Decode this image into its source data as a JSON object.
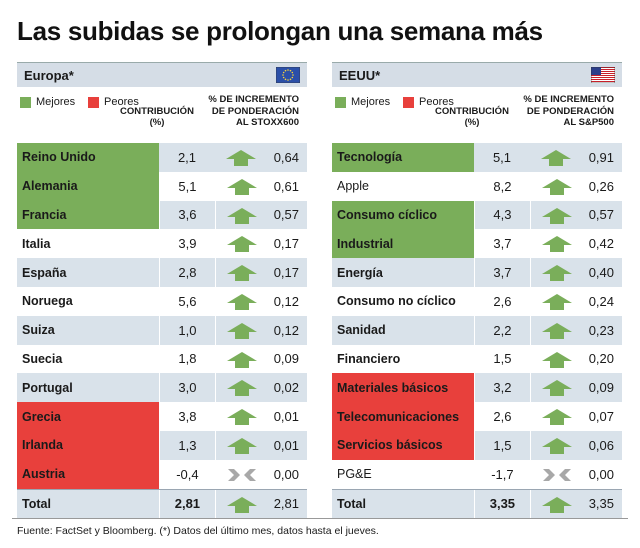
{
  "title": "Las subidas se prolongan una semana más",
  "legend": {
    "better": "Mejores",
    "worse": "Peores",
    "better_color": "#7aae5a",
    "worse_color": "#e8403c"
  },
  "header_contrib": [
    "CONTRIBUCIÓN",
    "(%)"
  ],
  "footer": "Fuente: FactSet y Bloomberg. (*) Datos del último mes, datos hasta el jueves.",
  "chart_data": [
    {
      "type": "table",
      "title": "Europa*",
      "flag": "eu-flag",
      "columns": [
        "",
        "CONTRIBUCIÓN (%)",
        "% DE INCREMENTO DE PONDERACIÓN AL STOXX600"
      ],
      "pct_header": [
        "% DE INCREMENTO",
        "DE PONDERACIÓN",
        "AL STOXX600"
      ],
      "rows": [
        {
          "name": "Reino Unido",
          "contrib": "2,1",
          "direction": "up",
          "weight": "0,64",
          "status": "better"
        },
        {
          "name": "Alemania",
          "contrib": "5,1",
          "direction": "up",
          "weight": "0,61",
          "status": "better"
        },
        {
          "name": "Francia",
          "contrib": "3,6",
          "direction": "up",
          "weight": "0,57",
          "status": "better"
        },
        {
          "name": "Italia",
          "contrib": "3,9",
          "direction": "up",
          "weight": "0,17",
          "status": "neutral"
        },
        {
          "name": "España",
          "contrib": "2,8",
          "direction": "up",
          "weight": "0,17",
          "status": "neutral"
        },
        {
          "name": "Noruega",
          "contrib": "5,6",
          "direction": "up",
          "weight": "0,12",
          "status": "neutral"
        },
        {
          "name": "Suiza",
          "contrib": "1,0",
          "direction": "up",
          "weight": "0,12",
          "status": "neutral"
        },
        {
          "name": "Suecia",
          "contrib": "1,8",
          "direction": "up",
          "weight": "0,09",
          "status": "neutral"
        },
        {
          "name": "Portugal",
          "contrib": "3,0",
          "direction": "up",
          "weight": "0,02",
          "status": "neutral"
        },
        {
          "name": "Grecia",
          "contrib": "3,8",
          "direction": "up",
          "weight": "0,01",
          "status": "worse"
        },
        {
          "name": "Irlanda",
          "contrib": "1,3",
          "direction": "up",
          "weight": "0,01",
          "status": "worse"
        },
        {
          "name": "Austria",
          "contrib": "-0,4",
          "direction": "flat",
          "weight": "0,00",
          "status": "worse"
        }
      ],
      "total": {
        "name": "Total",
        "contrib": "2,81",
        "direction": "up",
        "weight": "2,81"
      }
    },
    {
      "type": "table",
      "title": "EEUU*",
      "flag": "us-flag",
      "columns": [
        "",
        "CONTRIBUCIÓN (%)",
        "% DE INCREMENTO DE PONDERACIÓN AL S&P500"
      ],
      "pct_header": [
        "% DE INCREMENTO",
        "DE PONDERACIÓN",
        "AL S&P500"
      ],
      "rows": [
        {
          "name": "Tecnología",
          "contrib": "5,1",
          "direction": "up",
          "weight": "0,91",
          "status": "better",
          "bold": true
        },
        {
          "name": "Apple",
          "contrib": "8,2",
          "direction": "up",
          "weight": "0,26",
          "status": "neutral",
          "bold": false
        },
        {
          "name": "Consumo cíclico",
          "contrib": "4,3",
          "direction": "up",
          "weight": "0,57",
          "status": "better",
          "bold": true
        },
        {
          "name": "Industrial",
          "contrib": "3,7",
          "direction": "up",
          "weight": "0,42",
          "status": "better",
          "bold": true
        },
        {
          "name": "Energía",
          "contrib": "3,7",
          "direction": "up",
          "weight": "0,40",
          "status": "neutral",
          "bold": true
        },
        {
          "name": "Consumo no cíclico",
          "contrib": "2,6",
          "direction": "up",
          "weight": "0,24",
          "status": "neutral",
          "bold": true
        },
        {
          "name": "Sanidad",
          "contrib": "2,2",
          "direction": "up",
          "weight": "0,23",
          "status": "neutral",
          "bold": true
        },
        {
          "name": "Financiero",
          "contrib": "1,5",
          "direction": "up",
          "weight": "0,20",
          "status": "neutral",
          "bold": true
        },
        {
          "name": "Materiales básicos",
          "contrib": "3,2",
          "direction": "up",
          "weight": "0,09",
          "status": "worse",
          "bold": true
        },
        {
          "name": "Telecomunicaciones",
          "contrib": "2,6",
          "direction": "up",
          "weight": "0,07",
          "status": "worse",
          "bold": true
        },
        {
          "name": "Servicios básicos",
          "contrib": "1,5",
          "direction": "up",
          "weight": "0,06",
          "status": "worse",
          "bold": true
        },
        {
          "name": "PG&E",
          "contrib": "-1,7",
          "direction": "flat",
          "weight": "0,00",
          "status": "neutral",
          "bold": false
        }
      ],
      "total": {
        "name": "Total",
        "contrib": "3,35",
        "direction": "up",
        "weight": "3,35"
      }
    }
  ]
}
